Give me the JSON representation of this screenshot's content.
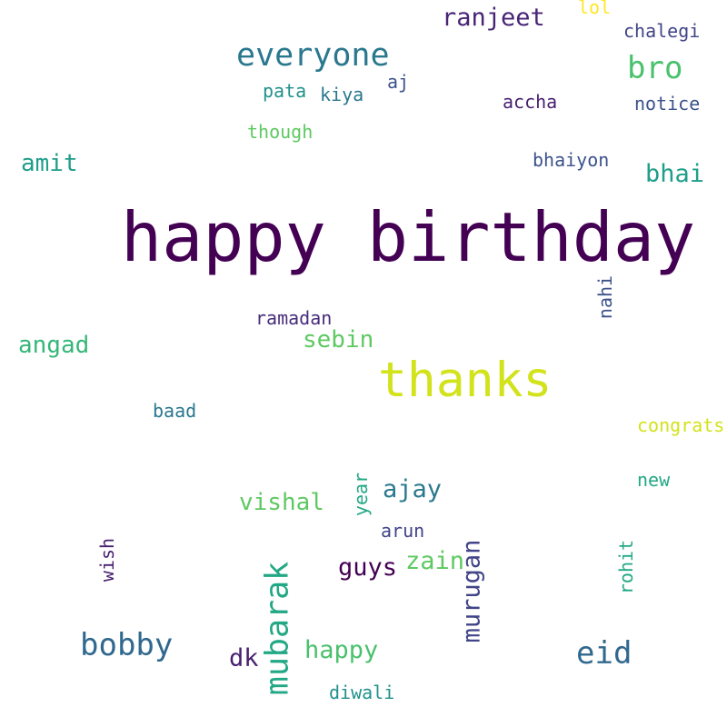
{
  "words": {
    "happy_birthday": {
      "text": "happy birthday",
      "color": "#440154"
    },
    "thanks": {
      "text": "thanks",
      "color": "#d2e21b"
    },
    "everyone": {
      "text": "everyone",
      "color": "#2a788e"
    },
    "ranjeet": {
      "text": "ranjeet",
      "color": "#482475"
    },
    "lol": {
      "text": "lol",
      "color": "#fde725"
    },
    "chalegi": {
      "text": "chalegi",
      "color": "#414487"
    },
    "bro": {
      "text": "bro",
      "color": "#4ac16d"
    },
    "pata": {
      "text": "pata",
      "color": "#21918c"
    },
    "kiya": {
      "text": "kiya",
      "color": "#2a788e"
    },
    "aj": {
      "text": "aj",
      "color": "#3b528b"
    },
    "accha": {
      "text": "accha",
      "color": "#481f70"
    },
    "notice": {
      "text": "notice",
      "color": "#3b528b"
    },
    "though": {
      "text": "though",
      "color": "#5ec962"
    },
    "amit": {
      "text": "amit",
      "color": "#1f9e89"
    },
    "bhaiyon": {
      "text": "bhaiyon",
      "color": "#3b528b"
    },
    "bhai": {
      "text": "bhai",
      "color": "#1f9e89"
    },
    "nahi": {
      "text": "nahi",
      "color": "#3b528b"
    },
    "ramadan": {
      "text": "ramadan",
      "color": "#472d7b"
    },
    "angad": {
      "text": "angad",
      "color": "#35b779"
    },
    "sebin": {
      "text": "sebin",
      "color": "#5ec962"
    },
    "baad": {
      "text": "baad",
      "color": "#2a788e"
    },
    "congrats": {
      "text": "congrats",
      "color": "#d2e21b"
    },
    "new": {
      "text": "new",
      "color": "#22a884"
    },
    "year": {
      "text": "year",
      "color": "#22a884"
    },
    "ajay": {
      "text": "ajay",
      "color": "#2a788e"
    },
    "vishal": {
      "text": "vishal",
      "color": "#5ec962"
    },
    "arun": {
      "text": "arun",
      "color": "#414487"
    },
    "wish": {
      "text": "wish",
      "color": "#481f70"
    },
    "mubarak": {
      "text": "mubarak",
      "color": "#22a884"
    },
    "guys": {
      "text": "guys",
      "color": "#440154"
    },
    "zain": {
      "text": "zain",
      "color": "#5ec962"
    },
    "murugan": {
      "text": "murugan",
      "color": "#414487"
    },
    "rohit": {
      "text": "rohit",
      "color": "#22a884"
    },
    "bobby": {
      "text": "bobby",
      "color": "#31688e"
    },
    "dk": {
      "text": "dk",
      "color": "#481f70"
    },
    "happy": {
      "text": "happy",
      "color": "#4ac16d"
    },
    "eid": {
      "text": "eid",
      "color": "#31688e"
    },
    "diwali": {
      "text": "diwali",
      "color": "#21918c"
    }
  }
}
